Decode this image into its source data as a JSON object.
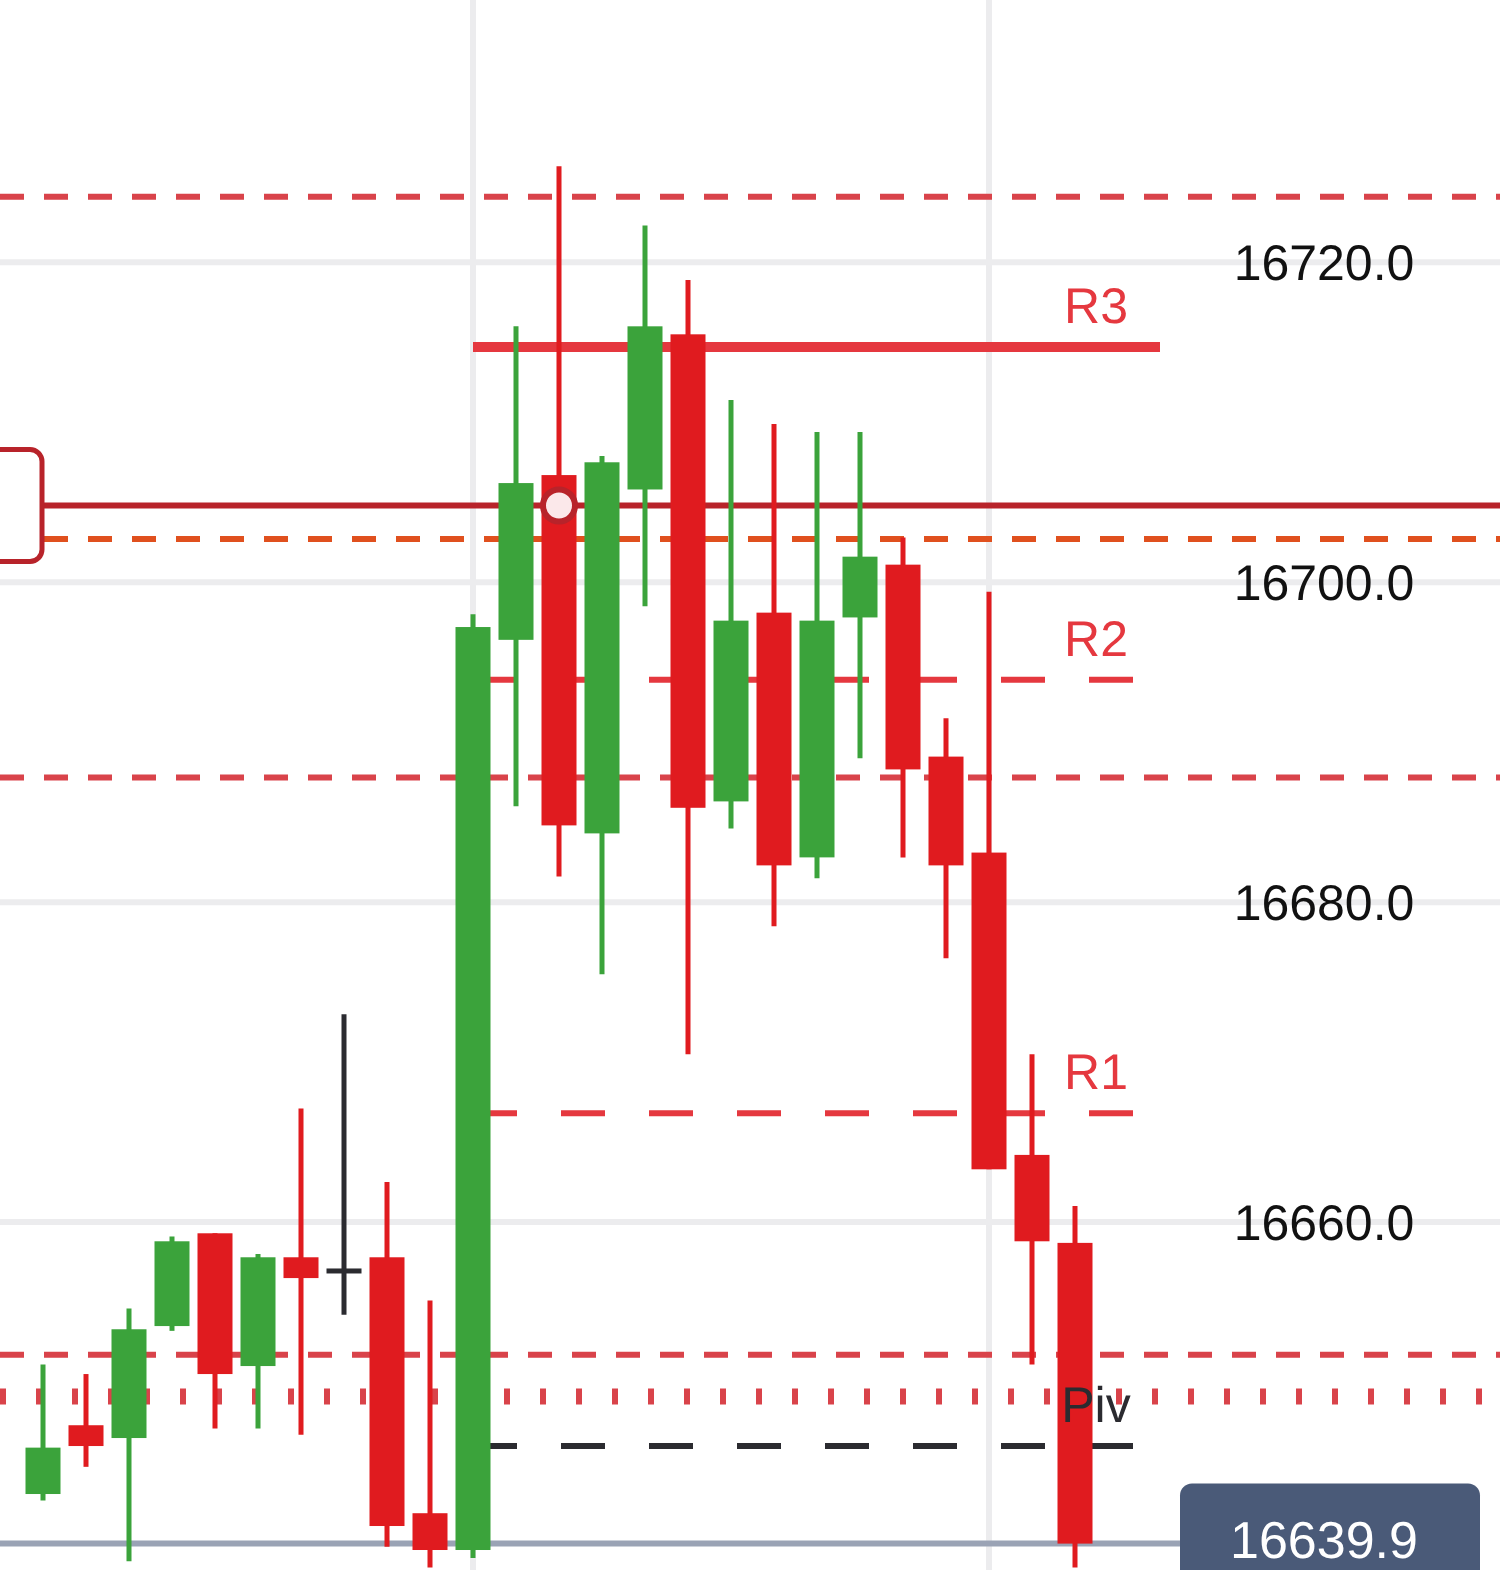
{
  "chart_data": {
    "type": "candlestick",
    "categories": [
      null,
      null,
      null,
      null,
      null,
      null,
      null,
      null,
      null,
      null,
      null,
      null,
      null,
      null,
      null,
      null,
      null,
      null,
      null,
      null,
      null,
      null,
      null,
      null,
      null
    ],
    "ohlc": [
      [
        16643.0,
        16651.1,
        16642.6,
        16645.9
      ],
      [
        16647.3,
        16650.5,
        16644.7,
        16646.0
      ],
      [
        16646.5,
        16654.6,
        16638.8,
        16653.3
      ],
      [
        16653.5,
        16659.1,
        16653.2,
        16658.8
      ],
      [
        16659.3,
        16659.3,
        16647.1,
        16650.5
      ],
      [
        16651.0,
        16658.0,
        16647.1,
        16657.8
      ],
      [
        16657.8,
        16667.1,
        16646.7,
        16656.5
      ],
      [
        16657.1,
        16673.0,
        16654.2,
        16657.1
      ],
      [
        16657.8,
        16662.5,
        16639.7,
        16641.0
      ],
      [
        16641.8,
        16655.1,
        16638.4,
        16639.5
      ],
      [
        16639.5,
        16698.0,
        16639.0,
        16697.2
      ],
      [
        16696.4,
        16716.0,
        16686.0,
        16706.2
      ],
      [
        16706.7,
        16726.0,
        16681.6,
        16684.8
      ],
      [
        16684.3,
        16707.9,
        16675.5,
        16707.5
      ],
      [
        16705.8,
        16722.3,
        16698.5,
        16716.0
      ],
      [
        16715.5,
        16718.9,
        16670.5,
        16685.9
      ],
      [
        16686.3,
        16711.4,
        16684.6,
        16697.6
      ],
      [
        16698.1,
        16709.9,
        16678.5,
        16682.3
      ],
      [
        16682.8,
        16709.4,
        16681.5,
        16697.6
      ],
      [
        16697.8,
        16709.4,
        16689.0,
        16701.6
      ],
      [
        16701.1,
        16702.8,
        16682.8,
        16688.3
      ],
      [
        16689.1,
        16691.5,
        16676.5,
        16682.3
      ],
      [
        16683.1,
        16699.4,
        16663.3,
        16663.3
      ],
      [
        16664.2,
        16670.5,
        16651.1,
        16658.8
      ],
      [
        16658.7,
        16661.0,
        16638.4,
        16639.9
      ]
    ],
    "colors": [
      "#3ba33b",
      "#e01b1f",
      "#3ba33b",
      "#3ba33b",
      "#e01b1f",
      "#3ba33b",
      "#e01b1f",
      "#2b2b30",
      "#e01b1f",
      "#e01b1f",
      "#3ba33b",
      "#3ba33b",
      "#e01b1f",
      "#3ba33b",
      "#3ba33b",
      "#e01b1f",
      "#3ba33b",
      "#e01b1f",
      "#3ba33b",
      "#3ba33b",
      "#e01b1f",
      "#e01b1f",
      "#e01b1f",
      "#e01b1f",
      "#e01b1f"
    ],
    "ylim": [
      16638.25,
      16736.4
    ],
    "yticks": [
      {
        "value": 16660,
        "label": "16660.0"
      },
      {
        "value": 16680,
        "label": "16680.0"
      },
      {
        "value": 16700,
        "label": "16700.0"
      },
      {
        "value": 16720,
        "label": "16720.0"
      }
    ],
    "grid": "y",
    "ref_lines": [
      {
        "axis": "y",
        "value": 16724.1,
        "color": "#d9434a",
        "line_style": "dashed"
      },
      {
        "axis": "y",
        "value": 16714.7,
        "label": "R3",
        "color": "#e5383f",
        "line_style": "solid"
      },
      {
        "axis": "y",
        "value": 16704.8,
        "color": "#b8232a",
        "line_style": "solid"
      },
      {
        "axis": "y",
        "value": 16702.7,
        "color": "#e0501e",
        "line_style": "dashed"
      },
      {
        "axis": "y",
        "value": 16693.9,
        "label": "R2",
        "color": "#e5383f",
        "line_style": "dashed"
      },
      {
        "axis": "y",
        "value": 16687.8,
        "color": "#d9434a",
        "line_style": "dashed"
      },
      {
        "axis": "y",
        "value": 16666.8,
        "label": "R1",
        "color": "#e5383f",
        "line_style": "dashed"
      },
      {
        "axis": "y",
        "value": 16651.7,
        "color": "#d9434a",
        "line_style": "dashed"
      },
      {
        "axis": "y",
        "value": 16649.1,
        "color": "#d9434a",
        "line_style": "dotted"
      },
      {
        "axis": "y",
        "value": 16646.0,
        "label": "Piv",
        "color": "#2b2b30",
        "line_style": "dashed"
      },
      {
        "axis": "y",
        "value": 16639.9,
        "label": "16639.9",
        "color": "#9aa3b5",
        "line_style": "solid"
      }
    ]
  }
}
